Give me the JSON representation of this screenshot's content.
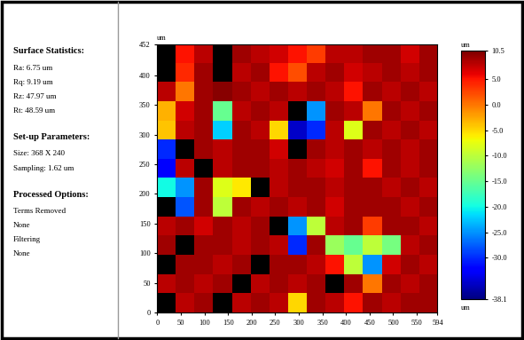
{
  "chart_data": {
    "type": "heatmap",
    "y_unit": "um",
    "colorbar_unit": "um",
    "xlim": [
      0,
      594
    ],
    "xticks": [
      0,
      50,
      100,
      150,
      200,
      250,
      300,
      350,
      400,
      450,
      500,
      550,
      594
    ],
    "ylim": [
      0,
      452
    ],
    "yticks": [
      0,
      50,
      100,
      150,
      200,
      250,
      300,
      350,
      400,
      452
    ],
    "colorbar_range": [
      -38.1,
      10.5
    ],
    "colorbar_ticks": [
      10.5,
      5.0,
      0.0,
      -5.0,
      -10.0,
      -15.0,
      -20.0,
      -25.0,
      -30.0,
      -38.1
    ],
    "cells": [
      [
        null,
        5,
        8,
        null,
        9,
        8,
        7,
        5,
        3,
        8,
        8,
        9,
        9,
        7,
        9
      ],
      [
        null,
        4,
        9,
        null,
        8,
        9,
        5,
        2,
        8,
        9,
        7,
        8,
        9,
        8,
        9
      ],
      [
        8,
        0,
        9,
        10,
        9,
        8,
        9,
        8,
        9,
        8,
        5,
        9,
        8,
        9,
        8
      ],
      [
        -3,
        7,
        9,
        -15,
        8,
        9,
        8,
        null,
        -25,
        9,
        8,
        0,
        9,
        8,
        9
      ],
      [
        -4,
        8,
        9,
        -22,
        9,
        8,
        -5,
        -35,
        -30,
        8,
        -8,
        9,
        8,
        9,
        8
      ],
      [
        -30,
        null,
        9,
        8,
        9,
        9,
        7,
        null,
        9,
        8,
        9,
        8,
        9,
        8,
        9
      ],
      [
        -32,
        8,
        null,
        8,
        9,
        9,
        8,
        9,
        8,
        7,
        9,
        5,
        9,
        8,
        9
      ],
      [
        -20,
        -25,
        9,
        -8,
        -6,
        null,
        8,
        9,
        9,
        8,
        9,
        9,
        8,
        9,
        8
      ],
      [
        null,
        -28,
        9,
        -10,
        9,
        8,
        9,
        8,
        9,
        7,
        9,
        9,
        9,
        8,
        9
      ],
      [
        8,
        9,
        7,
        9,
        8,
        9,
        null,
        -25,
        -10,
        8,
        9,
        3,
        9,
        9,
        8
      ],
      [
        9,
        null,
        9,
        9,
        8,
        9,
        8,
        -30,
        9,
        -12,
        -15,
        -10,
        -14,
        8,
        9
      ],
      [
        null,
        9,
        9,
        8,
        9,
        null,
        9,
        9,
        8,
        5,
        -10,
        -25,
        7,
        9,
        8
      ],
      [
        8,
        9,
        8,
        9,
        null,
        8,
        9,
        8,
        9,
        null,
        9,
        0,
        9,
        8,
        9
      ],
      [
        null,
        8,
        9,
        null,
        8,
        9,
        8,
        -5,
        9,
        8,
        5,
        9,
        8,
        9,
        9
      ]
    ]
  },
  "sidebar": [
    {
      "heading": "Surface Statistics:",
      "lines": [
        "Ra: 6.75 um",
        "Rq: 9.19 um",
        "Rz: 47.97 um",
        "Rt: 48.59 um"
      ]
    },
    {
      "heading": "Set-up Parameters:",
      "lines": [
        "Size: 368 X 240",
        "Sampling: 1.62 um"
      ]
    },
    {
      "heading": "Processed Options:",
      "lines": [
        "Terms Removed",
        "None",
        "Filtering",
        "None"
      ]
    }
  ]
}
